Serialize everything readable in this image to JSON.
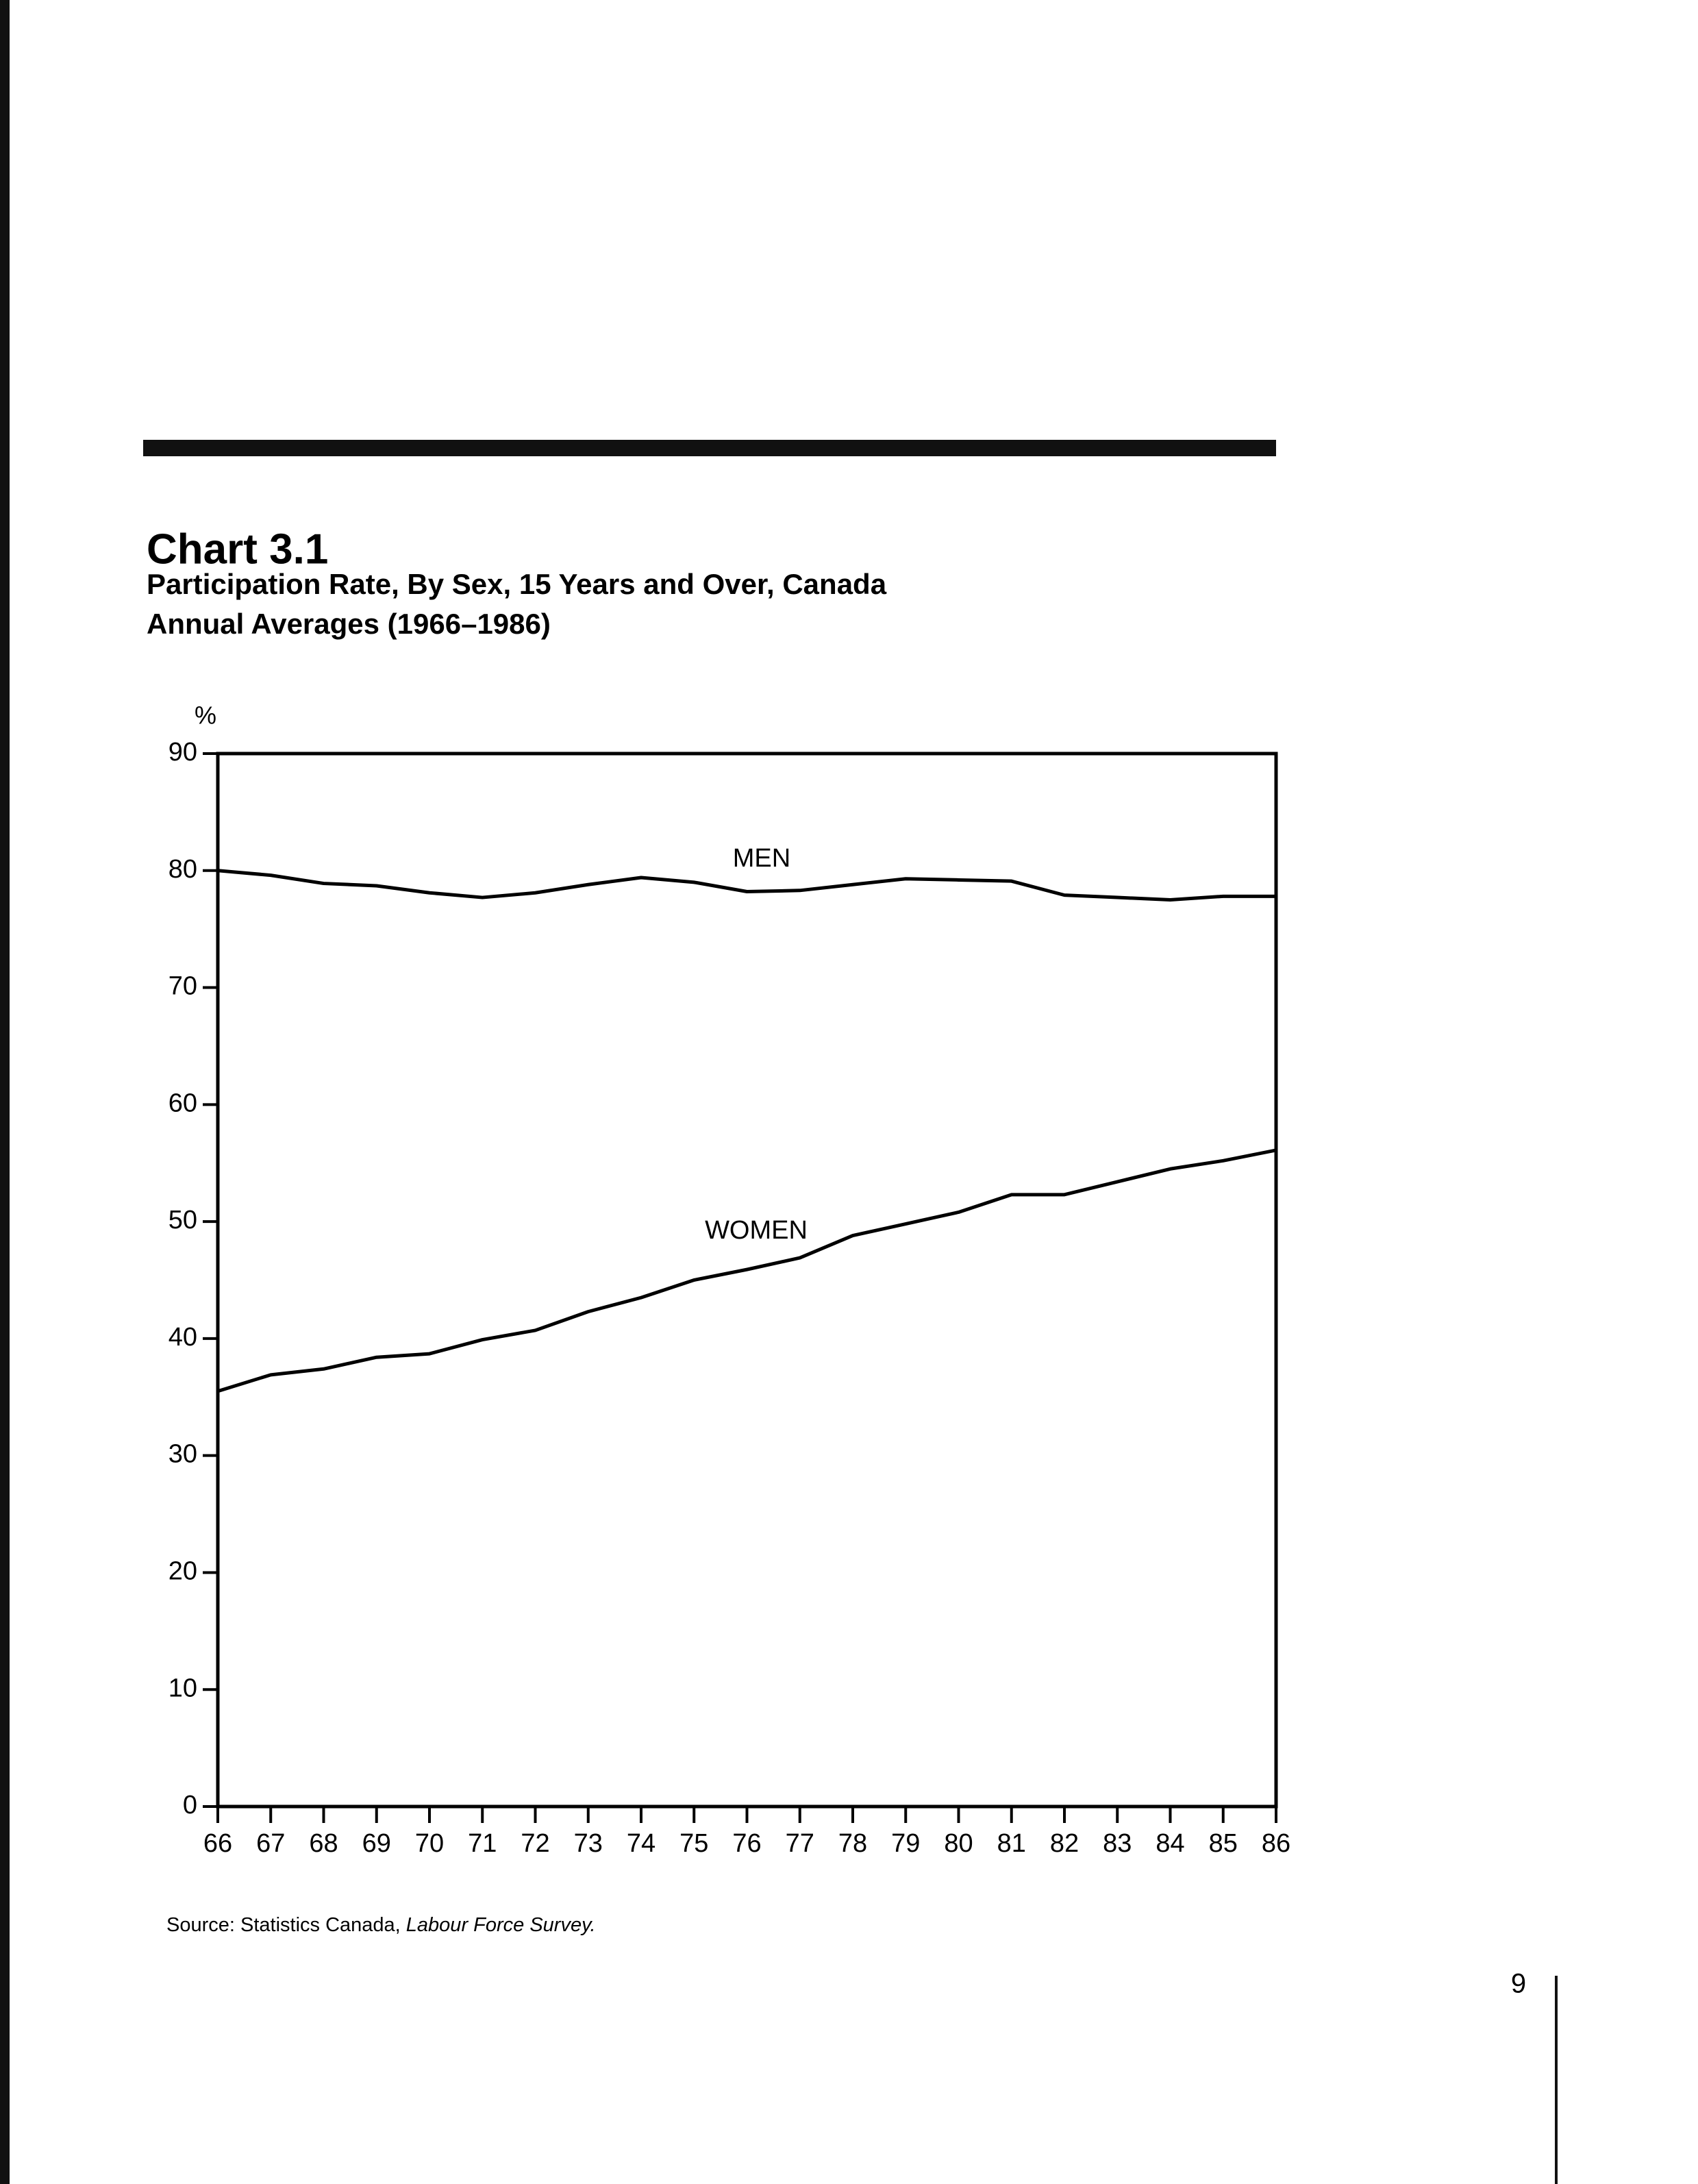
{
  "chart_data": {
    "type": "line",
    "title": "Chart 3.1",
    "subtitle": [
      "Participation Rate, By Sex, 15 Years and Over, Canada",
      "Annual Averages (1966–1986)"
    ],
    "y_label": "%",
    "categories": [
      "66",
      "67",
      "68",
      "69",
      "70",
      "71",
      "72",
      "73",
      "74",
      "75",
      "76",
      "77",
      "78",
      "79",
      "80",
      "81",
      "82",
      "83",
      "84",
      "85",
      "86"
    ],
    "series": [
      {
        "name": "MEN",
        "color": "#000000",
        "values": [
          80.0,
          79.6,
          78.9,
          78.7,
          78.1,
          77.7,
          78.1,
          78.8,
          79.4,
          79.0,
          78.2,
          78.3,
          78.8,
          79.3,
          79.2,
          79.1,
          77.9,
          77.7,
          77.5,
          77.8,
          77.8
        ]
      },
      {
        "name": "WOMEN",
        "color": "#000000",
        "values": [
          35.5,
          36.9,
          37.4,
          38.4,
          38.7,
          39.9,
          40.7,
          42.3,
          43.5,
          45.0,
          45.9,
          46.9,
          48.8,
          49.8,
          50.8,
          52.3,
          52.3,
          53.4,
          54.5,
          55.2,
          56.1
        ]
      }
    ],
    "ylim": [
      0,
      90
    ],
    "yticks": [
      0,
      10,
      20,
      30,
      40,
      50,
      60,
      70,
      80,
      90
    ],
    "grid": false,
    "source": [
      "Source: Statistics Canada, ",
      "Labour Force Survey."
    ]
  },
  "page_number": "9"
}
